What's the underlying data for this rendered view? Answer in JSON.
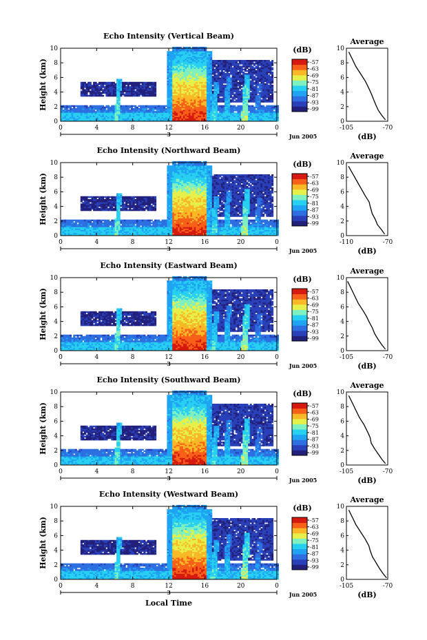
{
  "figure": {
    "shared_xlabel": "Local Time",
    "date_label": "Jun 2005",
    "day_marker_label": "3",
    "colorbar_label": "(dB)",
    "profile_title": "Average",
    "profile_xlabel": "(dB)",
    "ylabel": "Height (km)"
  },
  "colors": {
    "colormap": [
      "#22207a",
      "#2940b8",
      "#2d6fe0",
      "#1fa3f2",
      "#27d0f0",
      "#7ff0c0",
      "#e6f04a",
      "#f9b826",
      "#f76018",
      "#d61a10"
    ],
    "background": "#ffffff"
  },
  "chart_data": [
    {
      "type": "heatmap",
      "title": "Echo Intensity (Vertical Beam)",
      "x_ticks": [
        "0",
        "4",
        "8",
        "12",
        "16",
        "20",
        "0"
      ],
      "xlim": [
        0,
        24
      ],
      "y_ticks": [
        "0",
        "2",
        "4",
        "6",
        "8",
        "10"
      ],
      "ylim": [
        0,
        10
      ],
      "colorbar_ticks": [
        "-57",
        "-63",
        "-69",
        "-75",
        "-81",
        "-87",
        "-93",
        "-99"
      ],
      "profile": {
        "x_ticks": [
          "-105",
          "-70"
        ],
        "xlim": [
          -105,
          -70
        ],
        "y_ticks": [
          "0",
          "2",
          "4",
          "6",
          "8",
          "10"
        ],
        "points": [
          [
            -72,
            0.2
          ],
          [
            -75,
            0.8
          ],
          [
            -78,
            1.5
          ],
          [
            -80,
            2.2
          ],
          [
            -82,
            3.0
          ],
          [
            -84,
            3.8
          ],
          [
            -86,
            4.5
          ],
          [
            -89,
            5.5
          ],
          [
            -93,
            6.5
          ],
          [
            -97,
            7.5
          ],
          [
            -100,
            8.5
          ],
          [
            -103,
            9.5
          ]
        ]
      }
    },
    {
      "type": "heatmap",
      "title": "Echo Intensity (Northward Beam)",
      "x_ticks": [
        "0",
        "4",
        "8",
        "12",
        "16",
        "20",
        "0"
      ],
      "xlim": [
        0,
        24
      ],
      "y_ticks": [
        "0",
        "2",
        "4",
        "6",
        "8",
        "10"
      ],
      "ylim": [
        0,
        10
      ],
      "colorbar_ticks": [
        "-57",
        "-63",
        "-69",
        "-75",
        "-81",
        "-87",
        "-93",
        "-99"
      ],
      "profile": {
        "x_ticks": [
          "-110",
          "-70"
        ],
        "xlim": [
          -110,
          -70
        ],
        "y_ticks": [
          "0",
          "2",
          "4",
          "6",
          "8",
          "10"
        ],
        "points": [
          [
            -73,
            0.2
          ],
          [
            -76,
            0.8
          ],
          [
            -80,
            1.5
          ],
          [
            -82,
            2.2
          ],
          [
            -85,
            3.0
          ],
          [
            -87,
            4.0
          ],
          [
            -88,
            4.6
          ],
          [
            -92,
            5.5
          ],
          [
            -96,
            6.5
          ],
          [
            -100,
            7.5
          ],
          [
            -104,
            8.5
          ],
          [
            -108,
            9.5
          ]
        ]
      }
    },
    {
      "type": "heatmap",
      "title": "Echo Intensity (Eastward Beam)",
      "x_ticks": [
        "0",
        "4",
        "8",
        "12",
        "16",
        "20",
        "0"
      ],
      "xlim": [
        0,
        24
      ],
      "y_ticks": [
        "0",
        "2",
        "4",
        "6",
        "8",
        "10"
      ],
      "ylim": [
        0,
        10
      ],
      "colorbar_ticks": [
        "-57",
        "-63",
        "-69",
        "-75",
        "-81",
        "-87",
        "-93",
        "-99"
      ],
      "profile": {
        "x_ticks": [
          "-105",
          "-70"
        ],
        "xlim": [
          -105,
          -70
        ],
        "y_ticks": [
          "0",
          "2",
          "4",
          "6",
          "8",
          "10"
        ],
        "points": [
          [
            -72,
            0.2
          ],
          [
            -75,
            0.8
          ],
          [
            -78,
            1.5
          ],
          [
            -81,
            2.3
          ],
          [
            -83,
            3.1
          ],
          [
            -86,
            4.0
          ],
          [
            -88,
            4.7
          ],
          [
            -91,
            5.5
          ],
          [
            -95,
            6.5
          ],
          [
            -98,
            7.5
          ],
          [
            -101,
            8.5
          ],
          [
            -104,
            9.5
          ]
        ]
      }
    },
    {
      "type": "heatmap",
      "title": "Echo Intensity (Southward Beam)",
      "x_ticks": [
        "0",
        "4",
        "8",
        "12",
        "16",
        "20",
        "0"
      ],
      "xlim": [
        0,
        24
      ],
      "y_ticks": [
        "0",
        "2",
        "4",
        "6",
        "8",
        "10"
      ],
      "ylim": [
        0,
        10
      ],
      "colorbar_ticks": [
        "-57",
        "-63",
        "-69",
        "-75",
        "-81",
        "-87",
        "-93",
        "-99"
      ],
      "profile": {
        "x_ticks": [
          "-105",
          "-70"
        ],
        "xlim": [
          -105,
          -70
        ],
        "y_ticks": [
          "0",
          "2",
          "4",
          "6",
          "8",
          "10"
        ],
        "points": [
          [
            -72,
            0.2
          ],
          [
            -75,
            0.8
          ],
          [
            -78,
            1.5
          ],
          [
            -81,
            2.2
          ],
          [
            -84,
            3.0
          ],
          [
            -85,
            3.8
          ],
          [
            -87,
            4.5
          ],
          [
            -90,
            5.5
          ],
          [
            -94,
            6.5
          ],
          [
            -97,
            7.5
          ],
          [
            -100,
            8.5
          ],
          [
            -103,
            9.5
          ]
        ]
      }
    },
    {
      "type": "heatmap",
      "title": "Echo Intensity (Westward Beam)",
      "x_ticks": [
        "0",
        "4",
        "8",
        "12",
        "16",
        "20",
        "0"
      ],
      "xlim": [
        0,
        24
      ],
      "y_ticks": [
        "0",
        "2",
        "4",
        "6",
        "8",
        "10"
      ],
      "ylim": [
        0,
        10
      ],
      "colorbar_ticks": [
        "-57",
        "-63",
        "-69",
        "-75",
        "-81",
        "-87",
        "-93",
        "-99"
      ],
      "profile": {
        "x_ticks": [
          "-105",
          "-70"
        ],
        "xlim": [
          -105,
          -70
        ],
        "y_ticks": [
          "0",
          "2",
          "4",
          "6",
          "8",
          "10"
        ],
        "points": [
          [
            -71,
            0.2
          ],
          [
            -74,
            0.8
          ],
          [
            -77,
            1.5
          ],
          [
            -80,
            2.3
          ],
          [
            -83,
            3.1
          ],
          [
            -85,
            4.0
          ],
          [
            -86,
            4.6
          ],
          [
            -89,
            5.5
          ],
          [
            -93,
            6.5
          ],
          [
            -97,
            7.5
          ],
          [
            -100,
            8.5
          ],
          [
            -103,
            9.5
          ]
        ]
      }
    }
  ]
}
